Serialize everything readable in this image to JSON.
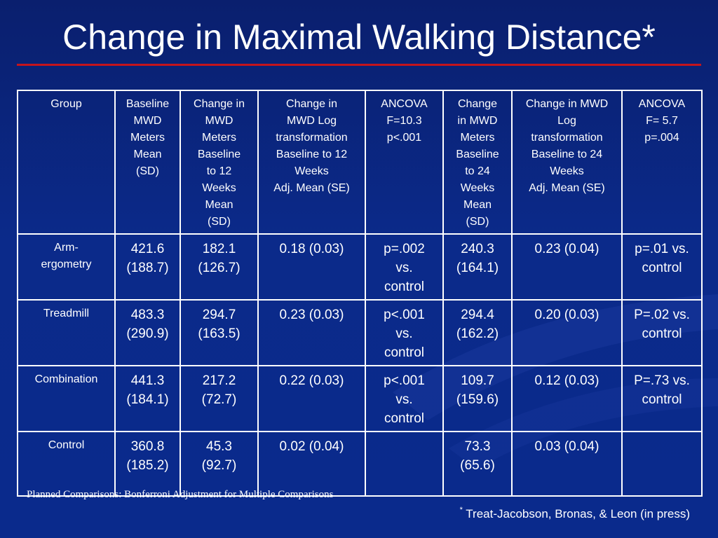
{
  "slide": {
    "title": "Change in Maximal Walking Distance*",
    "footnote": "Planned Comparisons: Bonferroni Adjustment for Multiple Comparisons",
    "citation_marker": "*",
    "citation": " Treat-Jacobson, Bronas, & Leon (in press)"
  },
  "colors": {
    "background": "#0b2a8a",
    "rule": "#c4141c",
    "text": "#ffffff"
  },
  "table": {
    "headers": [
      "Group",
      "Baseline\nMWD\nMeters\nMean\n(SD)",
      "Change in\nMWD\nMeters\nBaseline\nto 12\nWeeks\nMean\n(SD)",
      "Change in\nMWD Log\ntransformation\nBaseline to 12\nWeeks\nAdj. Mean (SE)",
      "ANCOVA\nF=10.3\np<.001",
      "Change\nin MWD\nMeters\nBaseline\nto 24\nWeeks\nMean\n(SD)",
      "Change in MWD\nLog\ntransformation\nBaseline to 24\nWeeks\nAdj. Mean (SE)",
      "ANCOVA\nF= 5.7\np=.004"
    ],
    "rows": [
      {
        "group": "Arm-\nergometry",
        "baseline": "421.6\n(188.7)",
        "change12": "182.1\n(126.7)",
        "log12": "0.18 (0.03)",
        "p12": "p=.002\nvs.\ncontrol",
        "change24": "240.3\n(164.1)",
        "log24": "0.23 (0.04)",
        "p24": "p=.01 vs.\ncontrol"
      },
      {
        "group": "Treadmill",
        "baseline": "483.3\n(290.9)",
        "change12": "294.7\n(163.5)",
        "log12": "0.23 (0.03)",
        "p12": "p<.001\nvs.\ncontrol",
        "change24": "294.4\n(162.2)",
        "log24": "0.20 (0.03)",
        "p24": "P=.02 vs.\ncontrol"
      },
      {
        "group": "Combination",
        "baseline": "441.3\n(184.1)",
        "change12": "217.2\n(72.7)",
        "log12": "0.22 (0.03)",
        "p12": "p<.001\nvs.\ncontrol",
        "change24": "109.7\n(159.6)",
        "log24": "0.12 (0.03)",
        "p24": "P=.73 vs.\ncontrol"
      },
      {
        "group": "Control",
        "baseline": "360.8\n(185.2)",
        "change12": "45.3\n(92.7)",
        "log12": "0.02 (0.04)",
        "p12": "",
        "change24": "73.3\n(65.6)",
        "log24": "0.03 (0.04)",
        "p24": ""
      }
    ]
  }
}
